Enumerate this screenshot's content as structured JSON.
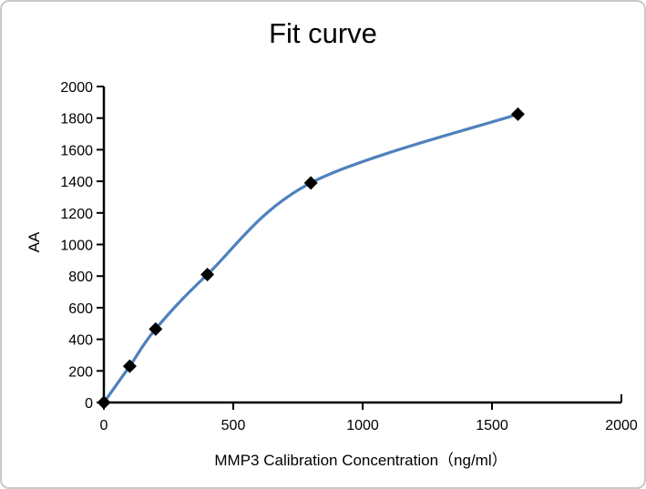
{
  "page": {
    "background": "#ffffff",
    "border_color": "#c9c9c9"
  },
  "chart_data": {
    "type": "line",
    "title": "Fit curve",
    "xlabel": "MMP3 Calibration Concentration（ng/ml）",
    "ylabel": "AA",
    "x": [
      0,
      100,
      200,
      400,
      800,
      1600
    ],
    "y": [
      0,
      230,
      465,
      810,
      1390,
      1825
    ],
    "xlim": [
      0,
      2000
    ],
    "ylim": [
      0,
      2000
    ],
    "xticks": [
      0,
      500,
      1000,
      1500,
      2000
    ],
    "yticks": [
      0,
      200,
      400,
      600,
      800,
      1000,
      1200,
      1400,
      1600,
      1800,
      2000
    ],
    "grid": false,
    "legend": "none",
    "line_color": "#4f81bd",
    "marker": "diamond",
    "marker_color": "#000000",
    "axis_color": "#000000"
  }
}
